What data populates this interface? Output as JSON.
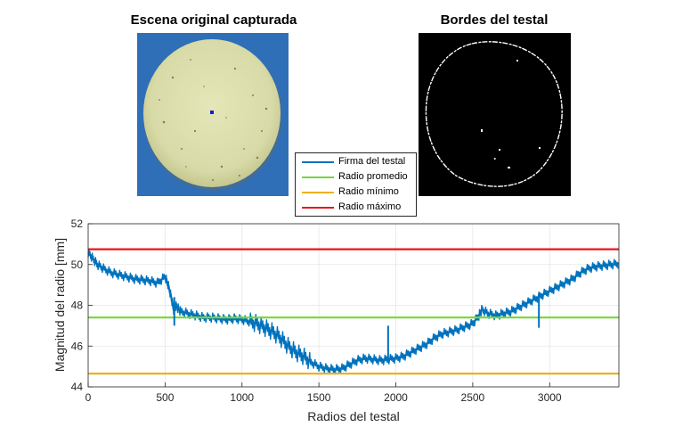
{
  "panels": {
    "scene_title": "Escena original capturada",
    "edges_title": "Bordes del testal"
  },
  "colors": {
    "signature": "#0072bd",
    "mean": "#77d63a",
    "min": "#edb120",
    "max": "#e8141c"
  },
  "chart_data": {
    "type": "line",
    "title": "",
    "xlabel": "Radios del testal",
    "ylabel": "Magnitud del radio [mm]",
    "xlim": [
      0,
      3450
    ],
    "ylim": [
      44,
      52
    ],
    "xticks": [
      0,
      500,
      1000,
      1500,
      2000,
      2500,
      3000
    ],
    "yticks": [
      44,
      46,
      48,
      50,
      52
    ],
    "grid": true,
    "legend_position": "top-center",
    "series": [
      {
        "name": "Firma del testal",
        "color": "#0072bd",
        "x": [
          0,
          30,
          60,
          100,
          150,
          200,
          250,
          300,
          350,
          400,
          450,
          500,
          520,
          540,
          555,
          560,
          580,
          600,
          650,
          700,
          750,
          800,
          850,
          900,
          950,
          1000,
          1050,
          1100,
          1150,
          1200,
          1250,
          1300,
          1350,
          1400,
          1450,
          1500,
          1550,
          1600,
          1650,
          1700,
          1750,
          1800,
          1850,
          1900,
          1950,
          2000,
          2050,
          2100,
          2150,
          2200,
          2250,
          2300,
          2350,
          2400,
          2450,
          2500,
          2540,
          2560,
          2600,
          2650,
          2700,
          2750,
          2800,
          2850,
          2900,
          2950,
          3000,
          3050,
          3100,
          3150,
          3200,
          3250,
          3300,
          3350,
          3400,
          3450
        ],
        "y": [
          50.6,
          50.3,
          50.0,
          49.8,
          49.6,
          49.5,
          49.4,
          49.3,
          49.25,
          49.2,
          49.1,
          49.4,
          49.0,
          48.4,
          47.8,
          48.0,
          47.9,
          47.7,
          47.6,
          47.5,
          47.4,
          47.4,
          47.35,
          47.3,
          47.35,
          47.3,
          47.2,
          47.1,
          46.9,
          46.7,
          46.4,
          46.0,
          45.7,
          45.5,
          45.2,
          45.0,
          44.9,
          44.85,
          44.9,
          45.1,
          45.3,
          45.4,
          45.35,
          45.3,
          45.35,
          45.4,
          45.5,
          45.7,
          45.9,
          46.1,
          46.4,
          46.6,
          46.7,
          46.8,
          46.95,
          47.1,
          47.5,
          47.8,
          47.6,
          47.5,
          47.6,
          47.7,
          47.9,
          48.1,
          48.3,
          48.5,
          48.7,
          48.9,
          49.1,
          49.3,
          49.6,
          49.8,
          49.9,
          49.95,
          50.0,
          50.05
        ]
      },
      {
        "name": "Radio promedio",
        "color": "#77d63a",
        "x": [
          0,
          3450
        ],
        "y": [
          47.4,
          47.4
        ]
      },
      {
        "name": "Radio mínimo",
        "color": "#edb120",
        "x": [
          0,
          3450
        ],
        "y": [
          44.65,
          44.65
        ]
      },
      {
        "name": "Radio máximo",
        "color": "#e8141c",
        "x": [
          0,
          3450
        ],
        "y": [
          50.75,
          50.75
        ]
      }
    ]
  }
}
